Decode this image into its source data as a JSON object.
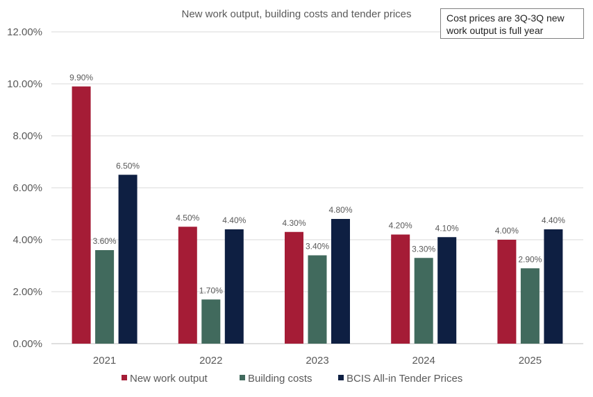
{
  "chart_data": {
    "type": "bar",
    "title": "New work output, building costs and tender prices",
    "annotation": "Cost prices are 3Q-3Q new work output is full year",
    "categories": [
      "2021",
      "2022",
      "2023",
      "2024",
      "2025"
    ],
    "series": [
      {
        "name": "New work output",
        "color": "#a51c36",
        "values": [
          9.9,
          4.5,
          4.3,
          4.2,
          4.0
        ]
      },
      {
        "name": "Building costs",
        "color": "#416a5d",
        "values": [
          3.6,
          1.7,
          3.4,
          3.3,
          2.9
        ]
      },
      {
        "name": "BCIS All-in Tender Prices",
        "color": "#0e1f42",
        "values": [
          6.5,
          4.4,
          4.8,
          4.1,
          4.4
        ]
      }
    ],
    "data_labels": [
      [
        "9.90%",
        "4.50%",
        "4.30%",
        "4.20%",
        "4.00%"
      ],
      [
        "3.60%",
        "1.70%",
        "3.40%",
        "3.30%",
        "2.90%"
      ],
      [
        "6.50%",
        "4.40%",
        "4.80%",
        "4.10%",
        "4.40%"
      ]
    ],
    "y_ticks": [
      "0.00%",
      "2.00%",
      "4.00%",
      "6.00%",
      "8.00%",
      "10.00%",
      "12.00%"
    ],
    "ylim": [
      0,
      12
    ],
    "y_format": "percent",
    "grid": true,
    "legend_position": "bottom"
  }
}
